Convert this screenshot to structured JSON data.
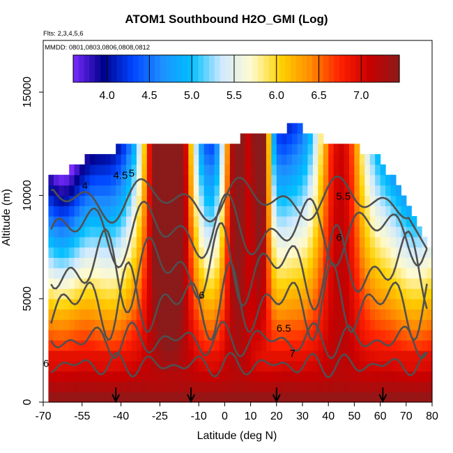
{
  "title": "ATOM1 Southbound H2O_GMI (Log)",
  "flights_label": "Flts: 2,3,4,5,6",
  "dates_label": "MMDD: 0801,0803,0806,0808,0812",
  "chart_data": {
    "type": "heatmap",
    "title": "ATOM1 Southbound H2O_GMI (Log)",
    "xlabel": "Latitude (deg N)",
    "ylabel": "Altitude (m)",
    "xlim": [
      -70,
      80
    ],
    "ylim": [
      0,
      17500
    ],
    "x_ticks": [
      "-70",
      "-55",
      "-40",
      "-25",
      "-10",
      "0",
      "10",
      "20",
      "30",
      "40",
      "50",
      "60",
      "70",
      "80"
    ],
    "x_tick_values": [
      -70,
      -55,
      -40,
      -25,
      -10,
      0,
      10,
      20,
      30,
      40,
      50,
      60,
      70,
      80
    ],
    "y_ticks": [
      "0",
      "5000",
      "10000",
      "15000"
    ],
    "y_tick_values": [
      0,
      5000,
      10000,
      15000
    ],
    "colorbar": {
      "range": [
        3.6,
        7.45
      ],
      "ticks": [
        "4.0",
        "4.5",
        "5.0",
        "5.5",
        "6.0",
        "6.5",
        "7.0"
      ],
      "tick_values": [
        4.0,
        4.5,
        5.0,
        5.5,
        6.0,
        6.5,
        7.0
      ],
      "colors": [
        "#7a2bff",
        "#00008b",
        "#0044ff",
        "#1e90ff",
        "#00bfff",
        "#cfe9ff",
        "#fffbd0",
        "#ffd200",
        "#ff8c00",
        "#ff2000",
        "#c80000",
        "#8b1a1a"
      ]
    },
    "contour_labels": [
      "4",
      "4.5",
      "5",
      "5.5",
      "6",
      "6",
      "6.5",
      "7",
      "6"
    ],
    "contour_label_values": [
      4,
      4.5,
      5,
      5.5,
      6,
      6,
      6.5,
      7,
      6
    ],
    "arrow_latitudes": [
      -42,
      -13,
      20,
      61
    ],
    "grid": false,
    "legend": "colorbar-top"
  }
}
